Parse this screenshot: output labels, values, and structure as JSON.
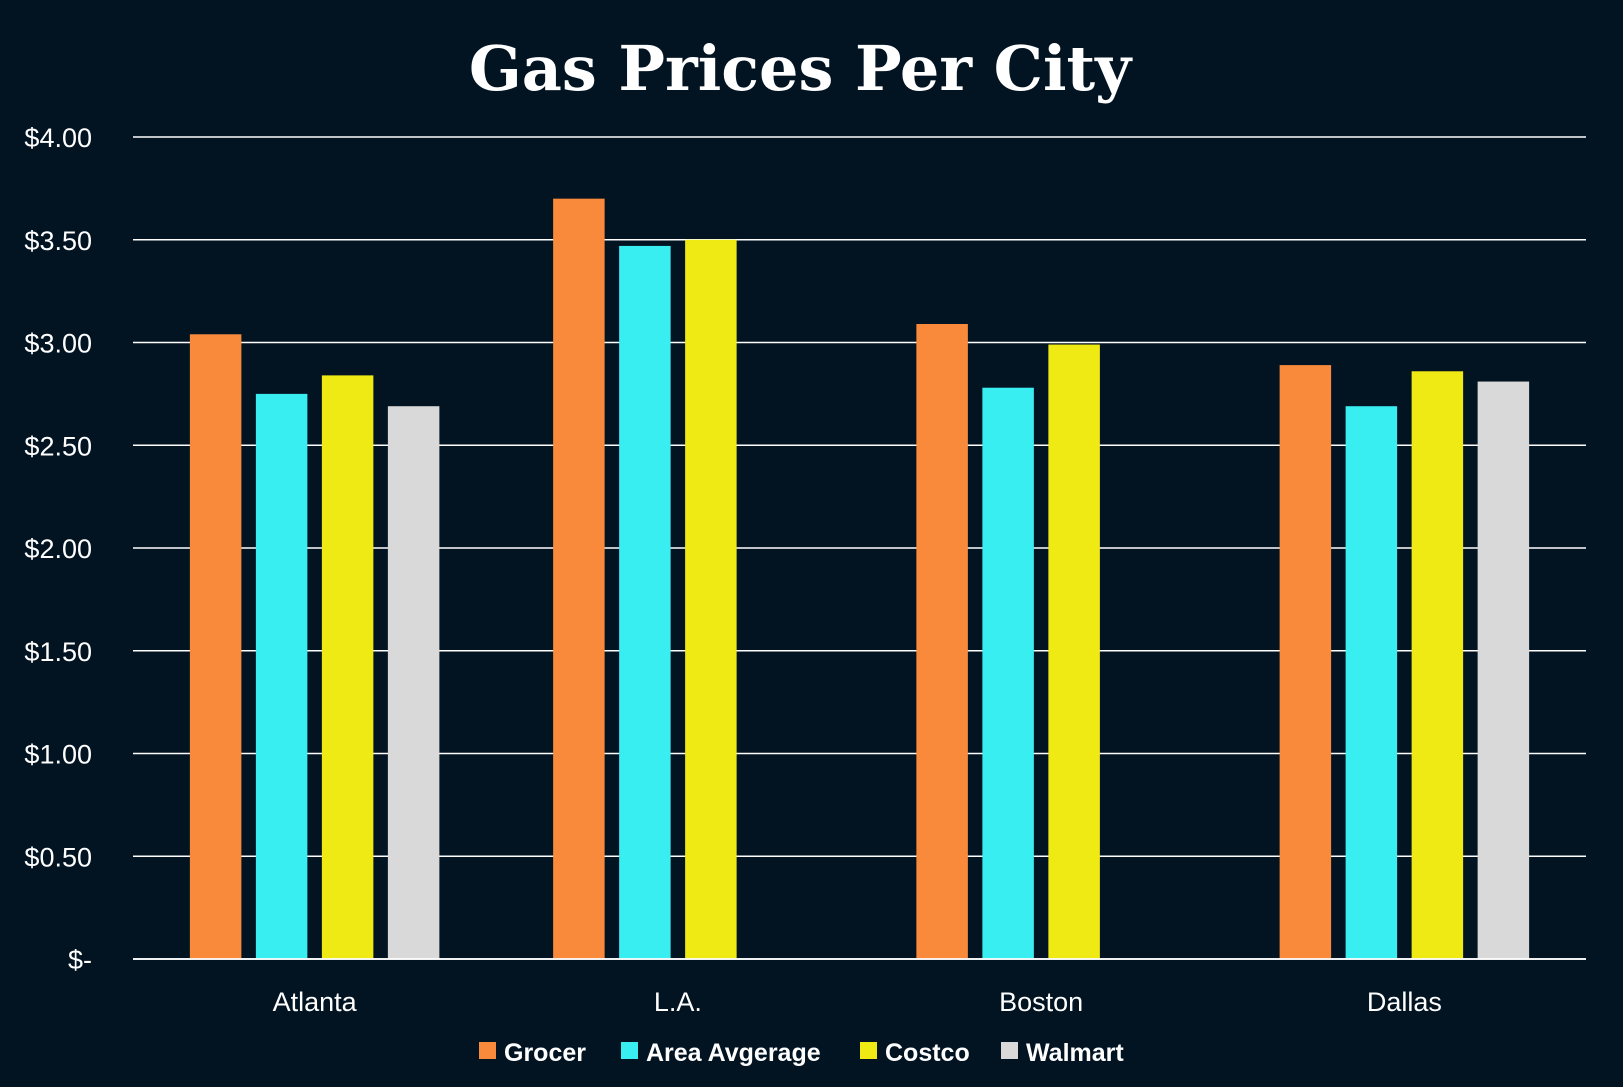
{
  "chart_data": {
    "type": "bar",
    "title": "Gas Prices Per City",
    "xlabel": "",
    "ylabel": "",
    "categories": [
      "Atlanta",
      "L.A.",
      "Boston",
      "Dallas"
    ],
    "series": [
      {
        "name": "Grocer",
        "color": "#F98A3B",
        "values": [
          3.04,
          3.7,
          3.09,
          2.89
        ]
      },
      {
        "name": "Area Avgerage",
        "color": "#38EEF0",
        "values": [
          2.75,
          3.47,
          2.78,
          2.69
        ]
      },
      {
        "name": "Costco",
        "color": "#EFEA13",
        "values": [
          2.84,
          3.5,
          2.99,
          2.86
        ]
      },
      {
        "name": "Walmart",
        "color": "#D9D9D9",
        "values": [
          2.69,
          null,
          null,
          2.81
        ]
      }
    ],
    "ylim": [
      0,
      4
    ],
    "yticks": [
      0,
      0.5,
      1,
      1.5,
      2,
      2.5,
      3,
      3.5,
      4
    ],
    "ytick_labels": [
      "$-",
      "$0.50",
      "$1.00",
      "$1.50",
      "$2.00",
      "$2.50",
      "$3.00",
      "$3.50",
      "$4.00"
    ],
    "grid": true,
    "legend_position": "bottom",
    "background_color": "#021322",
    "gridline_color": "#FFFFFF",
    "text_color": "#FFFFFF"
  }
}
